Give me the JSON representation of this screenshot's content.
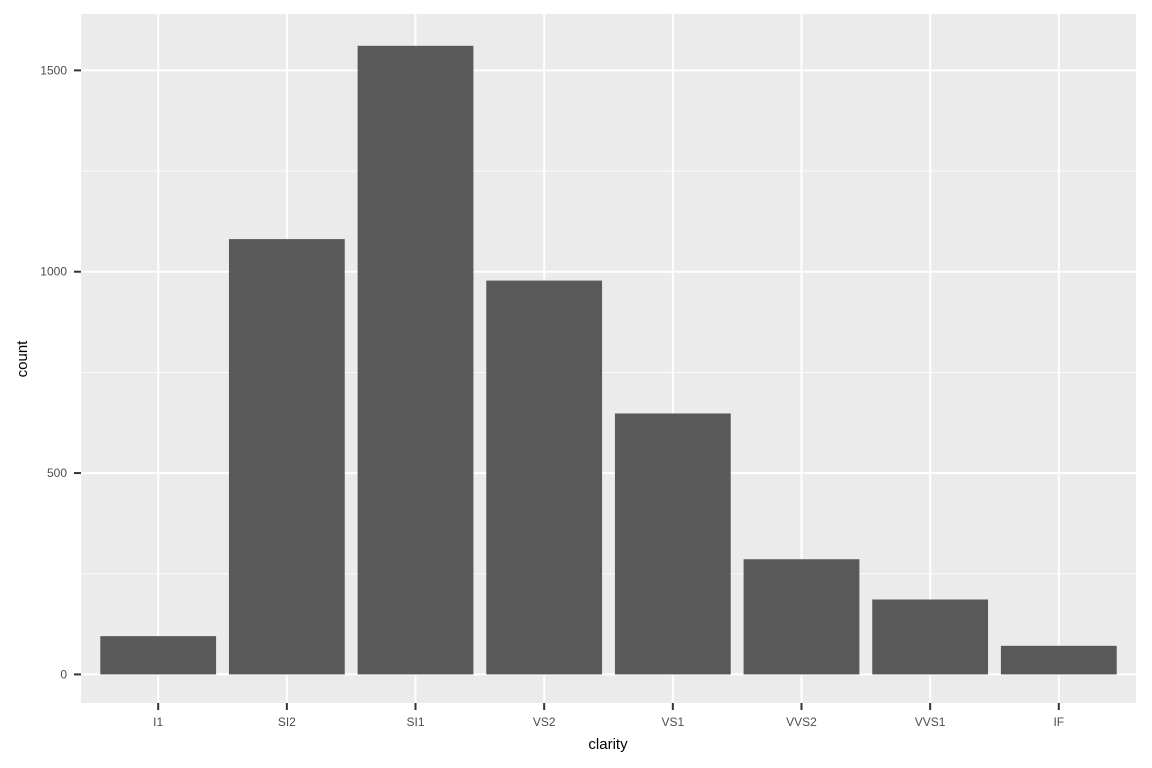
{
  "chart_data": {
    "type": "bar",
    "categories": [
      "I1",
      "SI2",
      "SI1",
      "VS2",
      "VS1",
      "VVS2",
      "VVS1",
      "IF"
    ],
    "values": [
      95,
      1081,
      1561,
      978,
      648,
      286,
      186,
      71
    ],
    "xlabel": "clarity",
    "ylabel": "count",
    "ylim": [
      -71,
      1640
    ],
    "yticks": [
      0,
      500,
      1000,
      1500
    ],
    "grid": true,
    "colors": {
      "bar": "#595959",
      "panel": "#ebebeb",
      "grid": "#ffffff",
      "tick": "#333333",
      "text": "#4d4d4d"
    }
  }
}
